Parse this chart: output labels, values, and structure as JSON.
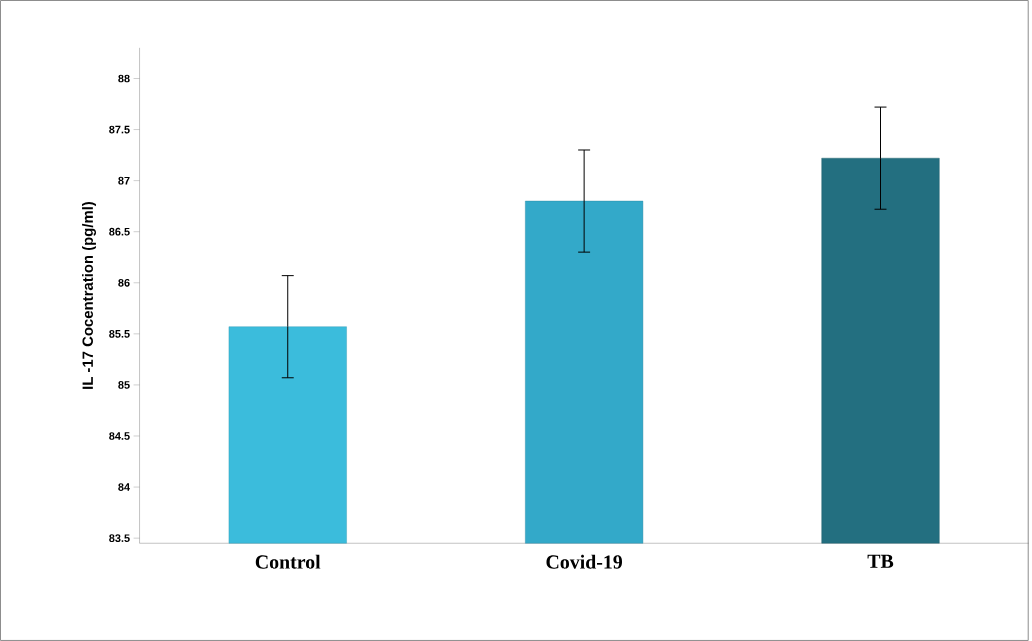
{
  "chart_data": {
    "type": "bar",
    "ylabel": "IL -17 Cocentration (pg/ml)",
    "categories": [
      "Control",
      "Covid-19",
      "TB"
    ],
    "values": [
      85.57,
      86.8,
      87.22
    ],
    "errors": [
      0.5,
      0.5,
      0.5
    ],
    "colors": [
      "#3bbcdc",
      "#33a9c9",
      "#236f80"
    ],
    "ylim": [
      83.45,
      88.3
    ],
    "yticks": [
      83.5,
      84,
      84.5,
      85,
      85.5,
      86,
      86.5,
      87,
      87.5,
      88
    ],
    "grid": false
  }
}
